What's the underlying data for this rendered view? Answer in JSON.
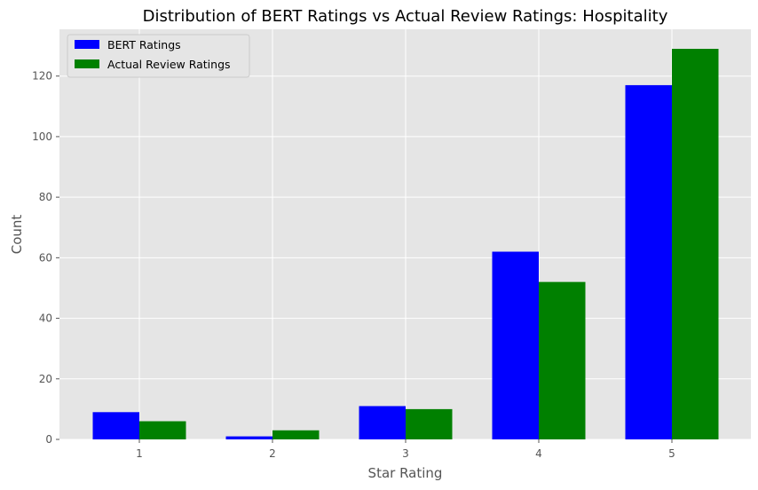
{
  "chart_data": {
    "type": "bar",
    "title": "Distribution of BERT Ratings vs Actual Review Ratings: Hospitality",
    "xlabel": "Star Rating",
    "ylabel": "Count",
    "categories": [
      "1",
      "2",
      "3",
      "4",
      "5"
    ],
    "series": [
      {
        "name": "BERT Ratings",
        "values": [
          9,
          1,
          11,
          62,
          117
        ],
        "color": "#0000ff"
      },
      {
        "name": "Actual Review Ratings",
        "values": [
          6,
          3,
          10,
          52,
          129
        ],
        "color": "#008000"
      }
    ],
    "ylim": [
      0,
      135.45
    ],
    "yticks": [
      0,
      20,
      40,
      60,
      80,
      100,
      120
    ],
    "grid": true,
    "legend_position": "top-left",
    "background": "#e5e5e5",
    "grid_color": "#ffffff"
  }
}
